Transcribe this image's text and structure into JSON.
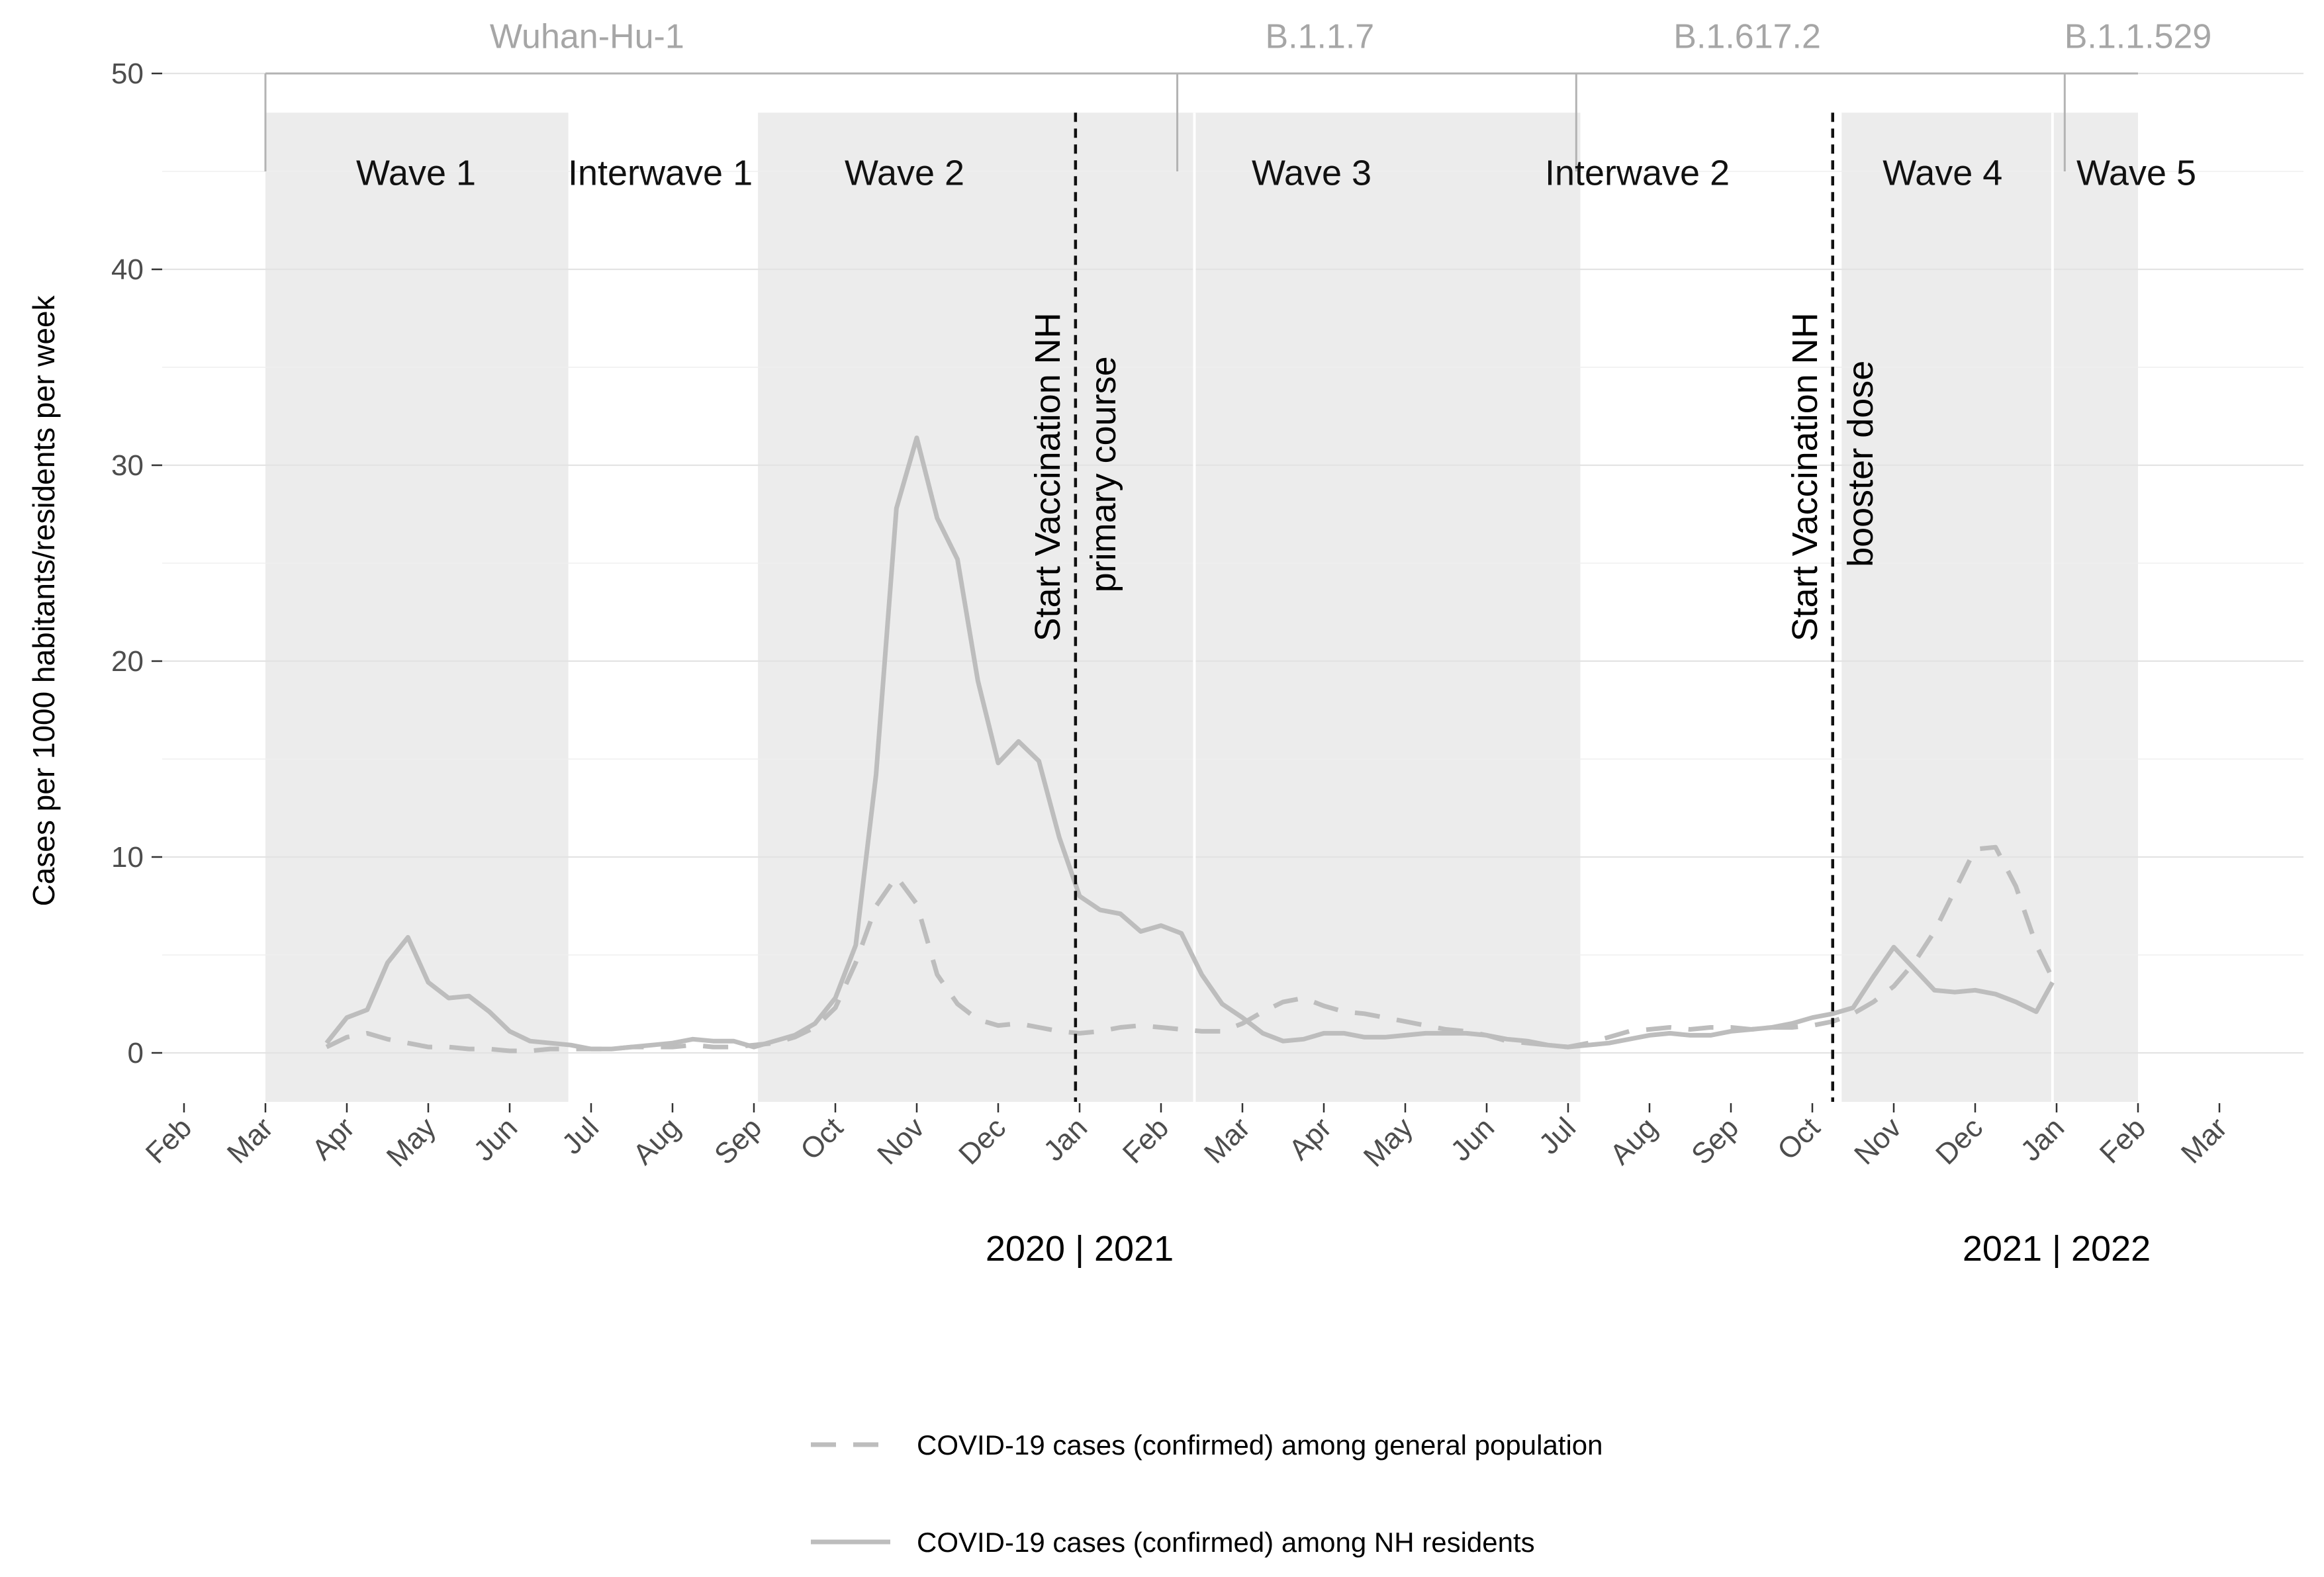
{
  "chart_data": {
    "type": "line",
    "ylabel": "Cases per 1000 habitants/residents per week",
    "ylim": [
      -2.5,
      50
    ],
    "y_ticks": [
      0,
      10,
      20,
      30,
      40,
      50
    ],
    "grid": true,
    "x_months": [
      "Feb",
      "Mar",
      "Apr",
      "May",
      "Jun",
      "Jul",
      "Aug",
      "Sep",
      "Oct",
      "Nov",
      "Dec",
      "Jan",
      "Feb",
      "Mar",
      "Apr",
      "May",
      "Jun",
      "Jul",
      "Aug",
      "Sep",
      "Oct",
      "Nov",
      "Dec",
      "Jan",
      "Feb",
      "Mar"
    ],
    "x_unit": "months since 2020-02-01",
    "xlim": [
      0,
      25.6
    ],
    "year_labels": [
      {
        "text": "2020 | 2021",
        "x": 11
      },
      {
        "text": "2021 | 2022",
        "x": 23
      }
    ],
    "variants": [
      {
        "name": "Wuhan-Hu-1",
        "start": 1,
        "end": 12.2
      },
      {
        "name": "B.1.1.7",
        "start": 12.2,
        "end": 17.1
      },
      {
        "name": "B.1.617.2",
        "start": 17.1,
        "end": 23.1
      },
      {
        "name": "B.1.1.529",
        "start": 23.1,
        "end": 24
      }
    ],
    "periods": [
      {
        "name": "Wave 1",
        "start": 1,
        "end": 4.72,
        "shaded": true
      },
      {
        "name": "Interwave 1",
        "start": 4.72,
        "end": 7.05,
        "shaded": false
      },
      {
        "name": "Wave 2",
        "start": 7.05,
        "end": 12.41,
        "shaded": true
      },
      {
        "name": "Wave 3",
        "start": 12.41,
        "end": 17.15,
        "shaded": true
      },
      {
        "name": "Interwave 2",
        "start": 17.15,
        "end": 20.36,
        "shaded": false
      },
      {
        "name": "Wave 4",
        "start": 20.36,
        "end": 22.95,
        "shaded": true
      },
      {
        "name": "Wave 5",
        "start": 22.95,
        "end": 24,
        "shaded": true
      }
    ],
    "vlines": [
      {
        "x": 10.95,
        "lines": [
          "Start Vaccination NH",
          "primary course"
        ]
      },
      {
        "x": 20.25,
        "lines": [
          "Start Vaccination NH",
          "booster dose"
        ]
      }
    ],
    "series": [
      {
        "name": "COVID-19 cases (confirmed) among general population",
        "style": "dashed",
        "color": "#bdbdbd",
        "x": [
          1.75,
          2.0,
          2.25,
          2.5,
          2.75,
          3.0,
          3.25,
          3.5,
          3.75,
          4.0,
          4.25,
          4.5,
          4.75,
          5.0,
          5.25,
          5.5,
          5.75,
          6.0,
          6.25,
          6.5,
          6.75,
          7.0,
          7.25,
          7.5,
          7.75,
          8.0,
          8.25,
          8.5,
          8.75,
          9.0,
          9.25,
          9.5,
          9.75,
          10.0,
          10.25,
          10.5,
          10.75,
          11.0,
          11.25,
          11.5,
          11.75,
          12.0,
          12.25,
          12.5,
          12.75,
          13.0,
          13.25,
          13.5,
          13.75,
          14.0,
          14.25,
          14.5,
          14.75,
          15.0,
          15.25,
          15.5,
          15.75,
          16.0,
          16.25,
          16.5,
          16.75,
          17.0,
          17.25,
          17.5,
          17.75,
          18.0,
          18.25,
          18.5,
          18.75,
          19.0,
          19.25,
          19.5,
          19.75,
          20.0,
          20.25,
          20.5,
          20.75,
          21.0,
          21.25,
          21.5,
          21.75,
          22.0,
          22.25,
          22.5,
          22.75,
          22.95
        ],
        "values": [
          0.3,
          0.8,
          1.0,
          0.7,
          0.5,
          0.3,
          0.3,
          0.2,
          0.2,
          0.1,
          0.1,
          0.2,
          0.2,
          0.2,
          0.2,
          0.3,
          0.3,
          0.3,
          0.4,
          0.3,
          0.3,
          0.4,
          0.5,
          0.8,
          1.3,
          2.3,
          4.6,
          7.5,
          9.0,
          7.6,
          4.0,
          2.5,
          1.7,
          1.4,
          1.5,
          1.3,
          1.1,
          1.0,
          1.1,
          1.3,
          1.4,
          1.3,
          1.2,
          1.1,
          1.1,
          1.5,
          2.1,
          2.6,
          2.8,
          2.4,
          2.1,
          2.0,
          1.8,
          1.6,
          1.4,
          1.2,
          1.1,
          0.9,
          0.6,
          0.5,
          0.4,
          0.3,
          0.5,
          0.8,
          1.1,
          1.2,
          1.3,
          1.2,
          1.3,
          1.3,
          1.2,
          1.3,
          1.3,
          1.4,
          1.6,
          2.0,
          2.6,
          3.4,
          4.6,
          6.2,
          8.3,
          10.4,
          10.5,
          8.5,
          5.5,
          3.8
        ]
      },
      {
        "name": "COVID-19 cases (confirmed) among NH residents",
        "style": "solid",
        "color": "#bdbdbd",
        "x": [
          1.75,
          2.0,
          2.25,
          2.5,
          2.75,
          3.0,
          3.25,
          3.5,
          3.75,
          4.0,
          4.25,
          4.5,
          4.75,
          5.0,
          5.25,
          5.5,
          5.75,
          6.0,
          6.25,
          6.5,
          6.75,
          7.0,
          7.25,
          7.5,
          7.75,
          8.0,
          8.25,
          8.5,
          8.75,
          9.0,
          9.25,
          9.5,
          9.75,
          10.0,
          10.25,
          10.5,
          10.75,
          11.0,
          11.25,
          11.5,
          11.75,
          12.0,
          12.25,
          12.5,
          12.75,
          13.0,
          13.25,
          13.5,
          13.75,
          14.0,
          14.25,
          14.5,
          14.75,
          15.0,
          15.25,
          15.5,
          15.75,
          16.0,
          16.25,
          16.5,
          16.75,
          17.0,
          17.25,
          17.5,
          17.75,
          18.0,
          18.25,
          18.5,
          18.75,
          19.0,
          19.25,
          19.5,
          19.75,
          20.0,
          20.25,
          20.5,
          20.75,
          21.0,
          21.25,
          21.5,
          21.75,
          22.0,
          22.25,
          22.5,
          22.75,
          22.95
        ],
        "values": [
          0.5,
          1.8,
          2.2,
          4.6,
          5.9,
          3.6,
          2.8,
          2.9,
          2.1,
          1.1,
          0.6,
          0.5,
          0.4,
          0.2,
          0.2,
          0.3,
          0.4,
          0.5,
          0.7,
          0.6,
          0.6,
          0.3,
          0.6,
          0.9,
          1.5,
          2.8,
          5.5,
          14.2,
          27.8,
          31.4,
          27.3,
          25.2,
          19.0,
          14.8,
          15.9,
          14.9,
          11.0,
          8.0,
          7.3,
          7.1,
          6.2,
          6.5,
          6.1,
          4.0,
          2.5,
          1.8,
          1.0,
          0.6,
          0.7,
          1.0,
          1.0,
          0.8,
          0.8,
          0.9,
          1.0,
          1.0,
          1.0,
          0.9,
          0.7,
          0.6,
          0.4,
          0.3,
          0.4,
          0.5,
          0.7,
          0.9,
          1.0,
          0.9,
          0.9,
          1.1,
          1.2,
          1.3,
          1.5,
          1.8,
          2.0,
          2.3,
          3.9,
          5.4,
          4.3,
          3.2,
          3.1,
          3.2,
          3.0,
          2.6,
          2.1,
          3.6
        ]
      }
    ]
  }
}
